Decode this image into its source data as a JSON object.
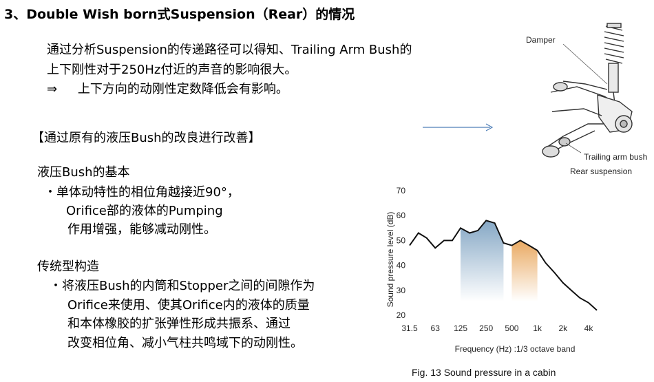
{
  "heading": "3、Double Wish born式Suspension（Rear）的情况",
  "intro": {
    "line1": "通过分析Suspension的传递路径可以得知、Trailing  Arm Bush的",
    "line2": "上下刚性对于250Hz付近的声音的影响很大。",
    "line3_arrow": "⇒",
    "line3_text": "上下方向的动刚性定数降低会有影响。"
  },
  "section_title": "【通过原有的液压Bush的改良进行改善】",
  "basics": {
    "title": "液压Bush的基本",
    "l1": "・单体动特性的相位角越接近90°，",
    "l2": "Orifice部的液体的Pumping",
    "l3": "作用增强，能够减动刚性。"
  },
  "conventional": {
    "title": "传统型构造",
    "l1": "・将液压Bush的内筒和Stopper之间的间隙作为",
    "l2": "Orifice来使用、使其Orifice内的液体的质量",
    "l3": "和本体橡胶的扩张弹性形成共振系、通过",
    "l4": "改变相位角、减小气柱共鸣域下的动刚性。"
  },
  "figure_top": {
    "damper_label": "Damper",
    "trailing_label": "Trailing arm bush",
    "caption": "Rear suspension",
    "icon": "suspension-illustration"
  },
  "colors": {
    "arrow": "#4f7fb8",
    "highlight_blue": "#7fa3c2",
    "highlight_orange": "#e8a55a"
  },
  "chart_data": {
    "type": "line",
    "title": "Fig. 13   Sound pressure in a cabin",
    "xlabel": "Frequency (Hz) :1/3 octave band",
    "ylabel": "Sound pressure level (dB)",
    "ylim": [
      20,
      70
    ],
    "yticks": [
      "20",
      "30",
      "40",
      "50",
      "60",
      "70"
    ],
    "xticks": [
      "31.5",
      "63",
      "125",
      "250",
      "500",
      "1k",
      "2k",
      "4k"
    ],
    "x": [
      31.5,
      40,
      50,
      63,
      80,
      100,
      125,
      160,
      200,
      250,
      315,
      400,
      500,
      630,
      800,
      1000,
      1250,
      1600,
      2000,
      2500,
      3150,
      4000,
      5000
    ],
    "values": [
      48,
      53,
      51,
      47,
      50,
      50,
      55,
      53,
      54,
      58,
      57,
      49,
      48,
      50,
      48,
      46,
      41,
      37,
      33,
      30,
      27,
      25,
      22
    ],
    "highlights": [
      {
        "from": 125,
        "to": 400,
        "color": "blue"
      },
      {
        "from": 500,
        "to": 1000,
        "color": "orange"
      }
    ]
  }
}
